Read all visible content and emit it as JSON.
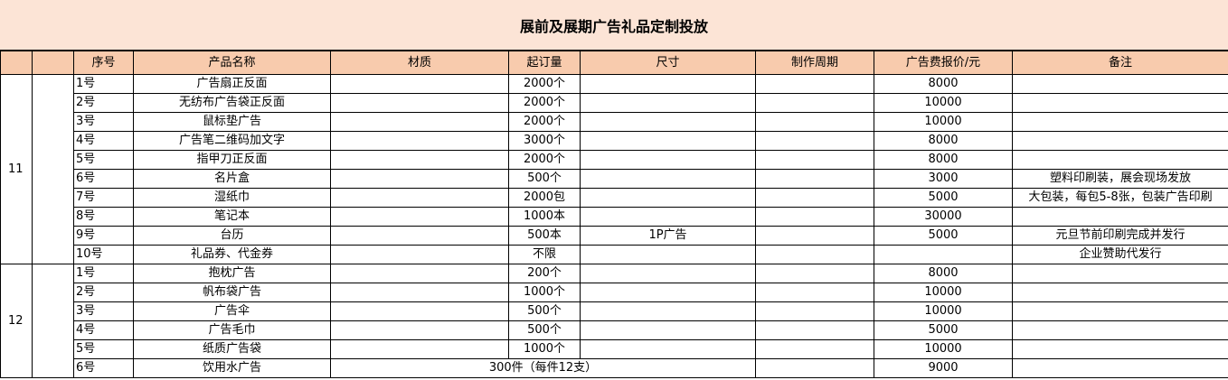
{
  "title": "展前及展期广告礼品定制投放",
  "headers": {
    "no": "序号",
    "name": "产品名称",
    "material": "材质",
    "moq": "起订量",
    "size": "尺寸",
    "period": "制作周期",
    "price": "广告费报价/元",
    "note": "备注"
  },
  "groups": [
    {
      "month": "11",
      "rows": [
        {
          "no": "1号",
          "name": "广告扇正反面",
          "material": "",
          "moq": "2000个",
          "size": "",
          "period": "",
          "price": "8000",
          "note": ""
        },
        {
          "no": "2号",
          "name": "无纺布广告袋正反面",
          "material": "",
          "moq": "2000个",
          "size": "",
          "period": "",
          "price": "10000",
          "note": ""
        },
        {
          "no": "3号",
          "name": "鼠标垫广告",
          "material": "",
          "moq": "2000个",
          "size": "",
          "period": "",
          "price": "10000",
          "note": ""
        },
        {
          "no": "4号",
          "name": "广告笔二维码加文字",
          "material": "",
          "moq": "3000个",
          "size": "",
          "period": "",
          "price": "8000",
          "note": ""
        },
        {
          "no": "5号",
          "name": "指甲刀正反面",
          "material": "",
          "moq": "2000个",
          "size": "",
          "period": "",
          "price": "8000",
          "note": ""
        },
        {
          "no": "6号",
          "name": "名片盒",
          "material": "",
          "moq": "500个",
          "size": "",
          "period": "",
          "price": "3000",
          "note": "塑料印刷装，展会现场发放"
        },
        {
          "no": "7号",
          "name": "湿纸巾",
          "material": "",
          "moq": "2000包",
          "size": "",
          "period": "",
          "price": "5000",
          "note": "大包装，每包5-8张，包装广告印刷"
        },
        {
          "no": "8号",
          "name": "笔记本",
          "material": "",
          "moq": "1000本",
          "size": "",
          "period": "",
          "price": "30000",
          "note": ""
        },
        {
          "no": "9号",
          "name": "台历",
          "material": "",
          "moq": "500本",
          "size": "1P广告",
          "period": "",
          "price": "5000",
          "note": "元旦节前印刷完成并发行"
        },
        {
          "no": "10号",
          "name": "礼品券、代金券",
          "material": "",
          "moq": "不限",
          "size": "",
          "period": "",
          "price": "",
          "note": "企业赞助代发行"
        }
      ]
    },
    {
      "month": "12",
      "rows": [
        {
          "no": "1号",
          "name": "抱枕广告",
          "material": "",
          "moq": "200个",
          "size": "",
          "period": "",
          "price": "8000",
          "note": ""
        },
        {
          "no": "2号",
          "name": "帆布袋广告",
          "material": "",
          "moq": "1000个",
          "size": "",
          "period": "",
          "price": "10000",
          "note": ""
        },
        {
          "no": "3号",
          "name": "广告伞",
          "material": "",
          "moq": "500个",
          "size": "",
          "period": "",
          "price": "10000",
          "note": ""
        },
        {
          "no": "4号",
          "name": "广告毛巾",
          "material": "",
          "moq": "500个",
          "size": "",
          "period": "",
          "price": "5000",
          "note": ""
        },
        {
          "no": "5号",
          "name": "纸质广告袋",
          "material": "",
          "moq": "1000个",
          "size": "",
          "period": "",
          "price": "10000",
          "note": ""
        },
        {
          "no": "6号",
          "name": "饮用水广告",
          "material": "",
          "moq": "300件（每件12支）",
          "size": "",
          "period": "",
          "price": "9000",
          "note": ""
        }
      ]
    }
  ]
}
